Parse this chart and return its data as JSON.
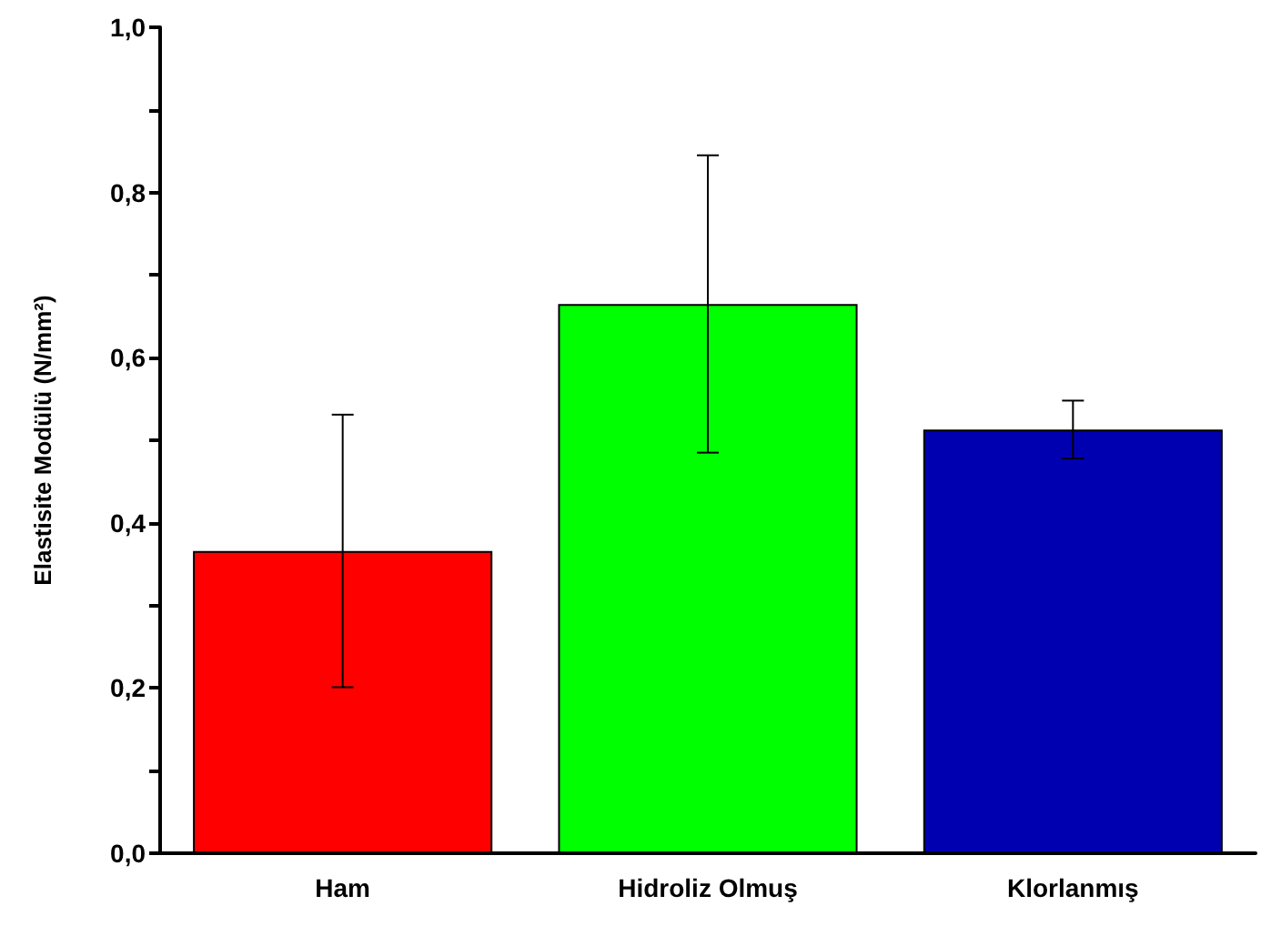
{
  "chart_data": {
    "type": "bar",
    "ylabel": "Elastisite Modülü (N/mm²)",
    "categories": [
      "Ham",
      "Hidroliz Olmuş",
      "Klorlanmış"
    ],
    "values": [
      0.366,
      0.665,
      0.513
    ],
    "colors": [
      "#ff0000",
      "#00ff00",
      "#0000b0"
    ],
    "errors": [
      0.165,
      0.18,
      0.035
    ],
    "ylim": [
      0,
      1
    ],
    "yticks": [
      {
        "value": 0,
        "label": "0,0"
      },
      {
        "value": 0.1,
        "label": null
      },
      {
        "value": 0.2,
        "label": "0,2"
      },
      {
        "value": 0.3,
        "label": null
      },
      {
        "value": 0.4,
        "label": "0,4"
      },
      {
        "value": 0.5,
        "label": null
      },
      {
        "value": 0.6,
        "label": "0,6"
      },
      {
        "value": 0.7,
        "label": null
      },
      {
        "value": 0.8,
        "label": "0,8"
      },
      {
        "value": 0.9,
        "label": null
      },
      {
        "value": 1,
        "label": "1,0"
      }
    ],
    "grid": false
  }
}
